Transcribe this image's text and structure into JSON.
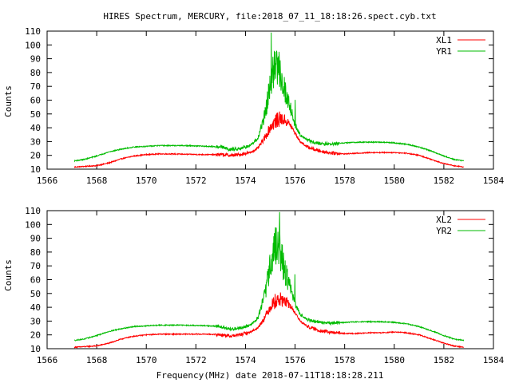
{
  "figure": {
    "title": "HIRES Spectrum, MERCURY, file:2018_07_11_18:18:26.spect.cyb.txt",
    "xlabel": "Frequency(MHz) date 2018-07-11T18:18:28.211"
  },
  "colors": {
    "red": "#ff0000",
    "green": "#00bb00",
    "axis": "#000000"
  },
  "chart_data": [
    {
      "type": "line",
      "ylabel": "Counts",
      "xlim": [
        1566,
        1584
      ],
      "ylim": [
        10,
        110
      ],
      "xticks": [
        1566,
        1568,
        1570,
        1572,
        1574,
        1576,
        1578,
        1580,
        1582,
        1584
      ],
      "yticks": [
        10,
        20,
        30,
        40,
        50,
        60,
        70,
        80,
        90,
        100,
        110
      ],
      "legend_position": "top-right",
      "series": [
        {
          "name": "XL1",
          "color": "#ff0000",
          "x": [
            1567.1,
            1568.0,
            1568.5,
            1569.0,
            1569.5,
            1570.0,
            1570.5,
            1571.0,
            1571.5,
            1572.0,
            1572.5,
            1573.0,
            1573.4,
            1573.8,
            1574.2,
            1574.5,
            1574.8,
            1575.0,
            1575.2,
            1575.4,
            1575.6,
            1575.8,
            1576.0,
            1576.2,
            1576.5,
            1576.8,
            1577.0,
            1577.5,
            1578.0,
            1578.5,
            1579.0,
            1579.5,
            1580.0,
            1580.5,
            1581.0,
            1581.5,
            1582.0,
            1582.4,
            1582.8
          ],
          "y": [
            11.5,
            12.5,
            14.5,
            17.5,
            19.5,
            20.5,
            21.0,
            21.0,
            20.8,
            20.6,
            20.5,
            20.5,
            19.8,
            20.5,
            22.0,
            25.0,
            33.0,
            40.0,
            44.0,
            46.0,
            45.0,
            42.0,
            36.0,
            30.0,
            26.0,
            24.0,
            23.0,
            21.5,
            21.0,
            21.5,
            22.0,
            22.0,
            22.0,
            21.5,
            20.0,
            17.0,
            14.0,
            12.5,
            11.5
          ]
        },
        {
          "name": "YR1",
          "color": "#00bb00",
          "x": [
            1567.1,
            1567.5,
            1568.0,
            1568.5,
            1569.0,
            1569.5,
            1570.0,
            1570.5,
            1571.0,
            1571.5,
            1572.0,
            1572.5,
            1573.0,
            1573.4,
            1573.8,
            1574.2,
            1574.5,
            1574.8,
            1575.0,
            1575.2,
            1575.4,
            1575.6,
            1575.8,
            1576.0,
            1576.2,
            1576.5,
            1576.8,
            1577.0,
            1577.5,
            1578.0,
            1578.5,
            1579.0,
            1579.5,
            1580.0,
            1580.5,
            1581.0,
            1581.5,
            1582.0,
            1582.4,
            1582.8
          ],
          "y": [
            16.0,
            17.0,
            19.5,
            22.5,
            24.5,
            26.0,
            26.5,
            27.0,
            27.0,
            27.0,
            26.8,
            26.5,
            26.0,
            24.0,
            25.0,
            27.0,
            32.0,
            50.0,
            70.0,
            85.0,
            80.0,
            65.0,
            55.0,
            42.0,
            35.0,
            31.0,
            29.0,
            28.5,
            28.0,
            29.0,
            29.5,
            29.5,
            29.5,
            29.0,
            28.0,
            26.0,
            23.0,
            19.5,
            17.0,
            16.0
          ]
        }
      ]
    },
    {
      "type": "line",
      "ylabel": "Counts",
      "xlim": [
        1566,
        1584
      ],
      "ylim": [
        10,
        110
      ],
      "xticks": [
        1566,
        1568,
        1570,
        1572,
        1574,
        1576,
        1578,
        1580,
        1582,
        1584
      ],
      "yticks": [
        10,
        20,
        30,
        40,
        50,
        60,
        70,
        80,
        90,
        100,
        110
      ],
      "legend_position": "top-right",
      "series": [
        {
          "name": "XL2",
          "color": "#ff0000",
          "x": [
            1567.1,
            1568.0,
            1568.5,
            1569.0,
            1569.5,
            1570.0,
            1570.5,
            1571.0,
            1571.5,
            1572.0,
            1572.5,
            1573.0,
            1573.4,
            1573.8,
            1574.2,
            1574.5,
            1574.8,
            1575.0,
            1575.2,
            1575.4,
            1575.6,
            1575.8,
            1576.0,
            1576.2,
            1576.5,
            1576.8,
            1577.0,
            1577.5,
            1578.0,
            1578.5,
            1579.0,
            1579.5,
            1580.0,
            1580.5,
            1581.0,
            1581.5,
            1582.0,
            1582.4,
            1582.8
          ],
          "y": [
            11.0,
            12.0,
            14.0,
            17.0,
            19.0,
            20.0,
            20.5,
            20.5,
            20.5,
            20.5,
            20.5,
            20.0,
            19.0,
            20.0,
            22.0,
            25.0,
            33.0,
            40.0,
            44.0,
            45.0,
            44.0,
            41.0,
            36.0,
            30.0,
            26.0,
            24.0,
            23.0,
            21.5,
            21.0,
            21.0,
            21.5,
            21.5,
            22.0,
            21.5,
            20.0,
            17.0,
            14.0,
            12.0,
            11.0
          ]
        },
        {
          "name": "YR2",
          "color": "#00bb00",
          "x": [
            1567.1,
            1567.5,
            1568.0,
            1568.5,
            1569.0,
            1569.5,
            1570.0,
            1570.5,
            1571.0,
            1571.5,
            1572.0,
            1572.5,
            1573.0,
            1573.4,
            1573.8,
            1574.2,
            1574.5,
            1574.8,
            1575.0,
            1575.2,
            1575.4,
            1575.6,
            1575.8,
            1576.0,
            1576.2,
            1576.5,
            1576.8,
            1577.0,
            1577.5,
            1578.0,
            1578.5,
            1579.0,
            1579.5,
            1580.0,
            1580.5,
            1581.0,
            1581.5,
            1582.0,
            1582.4,
            1582.8
          ],
          "y": [
            16.0,
            17.0,
            19.5,
            22.5,
            24.5,
            26.0,
            26.5,
            27.0,
            27.0,
            27.0,
            26.8,
            26.5,
            26.0,
            24.0,
            25.0,
            27.0,
            32.0,
            50.0,
            70.0,
            84.0,
            80.0,
            64.0,
            55.0,
            42.0,
            35.0,
            31.0,
            29.5,
            29.0,
            28.5,
            29.0,
            29.5,
            29.5,
            29.5,
            29.0,
            28.0,
            26.0,
            23.0,
            19.5,
            17.0,
            16.0
          ]
        }
      ]
    }
  ]
}
